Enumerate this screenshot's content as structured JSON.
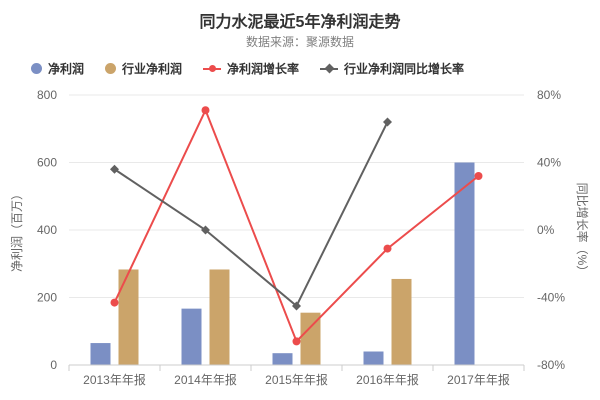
{
  "chart_data": {
    "type": "combo",
    "title": "同力水泥最近5年净利润走势",
    "subtitle": "数据来源：聚源数据",
    "legend_position": "top-left",
    "grid": true,
    "categories": [
      "2013年年报",
      "2014年年报",
      "2015年年报",
      "2016年年报",
      "2017年年报"
    ],
    "series": [
      {
        "name": "净利润",
        "type": "bar",
        "yaxis": "left",
        "color": "#7b8fc4",
        "values": [
          65,
          167,
          35,
          40,
          600
        ]
      },
      {
        "name": "行业净利润",
        "type": "bar",
        "yaxis": "left",
        "color": "#cba46a",
        "values": [
          283,
          283,
          155,
          255,
          null
        ]
      },
      {
        "name": "净利润增长率",
        "type": "line",
        "marker": "circle",
        "yaxis": "right",
        "color": "#ec4c4c",
        "values": [
          -43,
          71,
          -66,
          -11,
          32
        ]
      },
      {
        "name": "行业净利润同比增长率",
        "type": "line",
        "marker": "diamond",
        "yaxis": "right",
        "color": "#616161",
        "values": [
          36,
          0,
          -45,
          64,
          null
        ]
      }
    ],
    "left_axis": {
      "title": "净利润（百万）",
      "min": 0,
      "max": 800,
      "ticks": [
        0,
        200,
        400,
        600,
        800
      ]
    },
    "right_axis": {
      "title": "同比增长率（%）",
      "min": -80,
      "max": 80,
      "ticks": [
        -80,
        -40,
        0,
        40,
        80
      ],
      "tick_suffix": "%"
    }
  },
  "colors": {
    "grid": "#e9e9e9",
    "axis": "#cccccc",
    "tick_text": "#666666",
    "axis_title": "#666666",
    "title": "#333333",
    "subtitle": "#7f7f7f",
    "legend_text": "#333333"
  }
}
